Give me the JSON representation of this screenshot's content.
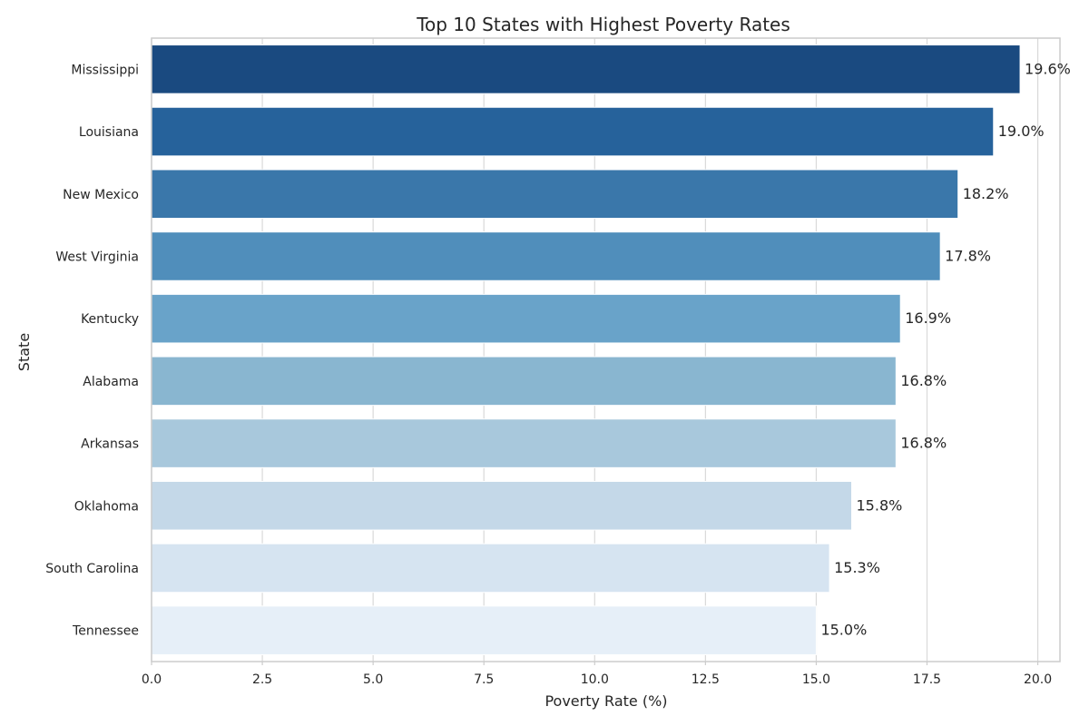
{
  "chart_data": {
    "type": "bar",
    "orientation": "horizontal",
    "title": "Top 10 States with Highest Poverty Rates",
    "xlabel": "Poverty Rate (%)",
    "ylabel": "State",
    "xlim": [
      0,
      20.5
    ],
    "xticks": [
      0.0,
      2.5,
      5.0,
      7.5,
      10.0,
      12.5,
      15.0,
      17.5,
      20.0
    ],
    "xtick_labels": [
      "0.0",
      "2.5",
      "5.0",
      "7.5",
      "10.0",
      "12.5",
      "15.0",
      "17.5",
      "20.0"
    ],
    "grid": true,
    "categories": [
      "Mississippi",
      "Louisiana",
      "New Mexico",
      "West Virginia",
      "Kentucky",
      "Alabama",
      "Arkansas",
      "Oklahoma",
      "South Carolina",
      "Tennessee"
    ],
    "values": [
      19.6,
      19.0,
      18.2,
      17.8,
      16.9,
      16.8,
      16.8,
      15.8,
      15.3,
      15.0
    ],
    "value_labels": [
      "19.6%",
      "19.0%",
      "18.2%",
      "17.8%",
      "16.9%",
      "16.8%",
      "16.8%",
      "15.8%",
      "15.3%",
      "15.0%"
    ],
    "colors": [
      "#1a4a80",
      "#26629b",
      "#3a77aa",
      "#508ebb",
      "#69a3c9",
      "#89b6d0",
      "#a8c8dc",
      "#c4d8e8",
      "#d6e4f1",
      "#e6eff8"
    ]
  }
}
